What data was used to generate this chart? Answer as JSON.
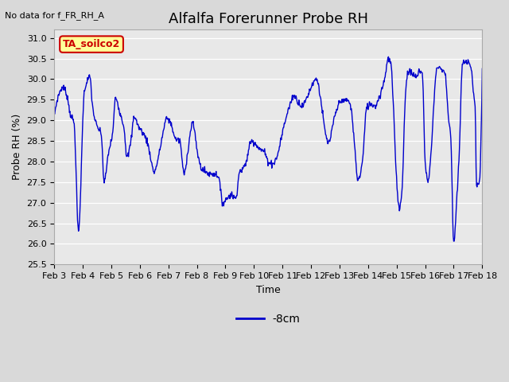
{
  "title": "Alfalfa Forerunner Probe RH",
  "no_data_label": "No data for f_FR_RH_A",
  "ylabel": "Probe RH (%)",
  "xlabel": "Time",
  "legend_label": "-8cm",
  "legend_line_color": "#0000cc",
  "line_color": "#0000cc",
  "background_color": "#d9d9d9",
  "plot_bg_color": "#e8e8e8",
  "ylim": [
    25.5,
    31.2
  ],
  "yticks": [
    25.5,
    26.0,
    26.5,
    27.0,
    27.5,
    28.0,
    28.5,
    29.0,
    29.5,
    30.0,
    30.5,
    31.0
  ],
  "xtick_labels": [
    "Feb 3",
    "Feb 4",
    "Feb 5",
    "Feb 6",
    "Feb 7",
    "Feb 8",
    "Feb 9",
    "Feb 10",
    "Feb 11",
    "Feb 12",
    "Feb 13",
    "Feb 14",
    "Feb 15",
    "Feb 16",
    "Feb 17",
    "Feb 18"
  ],
  "box_label": "TA_soilco2",
  "box_facecolor": "#ffff99",
  "box_edgecolor": "#cc0000",
  "title_fontsize": 13,
  "label_fontsize": 9,
  "tick_fontsize": 8,
  "no_data_fontsize": 8
}
